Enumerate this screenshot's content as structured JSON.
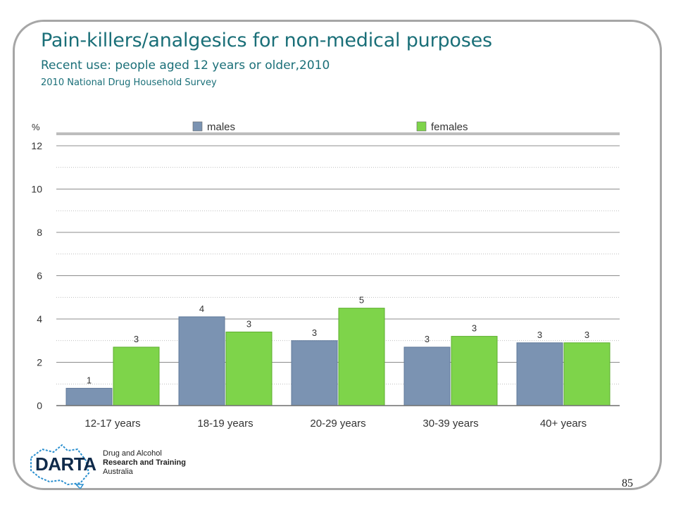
{
  "title": "Pain-killers/analgesics for non-medical purposes",
  "subtitle": "Recent use: people aged 12 years or older,2010",
  "source": "2010 National Drug Household Survey",
  "page_number": "85",
  "logo": {
    "name": "DARTA",
    "line1": "Drug and Alcohol",
    "line2": "Research and Training",
    "line3": "Australia"
  },
  "colors": {
    "males": "#7b93b2",
    "females": "#7ed44a",
    "title": "#1a6f78"
  },
  "chart_data": {
    "type": "bar",
    "ylabel": "%",
    "ylim": [
      0,
      12
    ],
    "yticks": [
      0,
      2,
      4,
      6,
      8,
      10,
      12
    ],
    "grid": true,
    "legend_position": "top",
    "categories": [
      "12-17 years",
      "18-19 years",
      "20-29 years",
      "30-39 years",
      "40+ years"
    ],
    "series": [
      {
        "name": "males",
        "values": [
          0.8,
          4.1,
          3.0,
          2.7,
          2.9
        ],
        "labels": [
          "1",
          "4",
          "3",
          "3",
          "3"
        ]
      },
      {
        "name": "females",
        "values": [
          2.7,
          3.4,
          4.5,
          3.2,
          2.9
        ],
        "labels": [
          "3",
          "3",
          "5",
          "3",
          "3"
        ]
      }
    ]
  }
}
